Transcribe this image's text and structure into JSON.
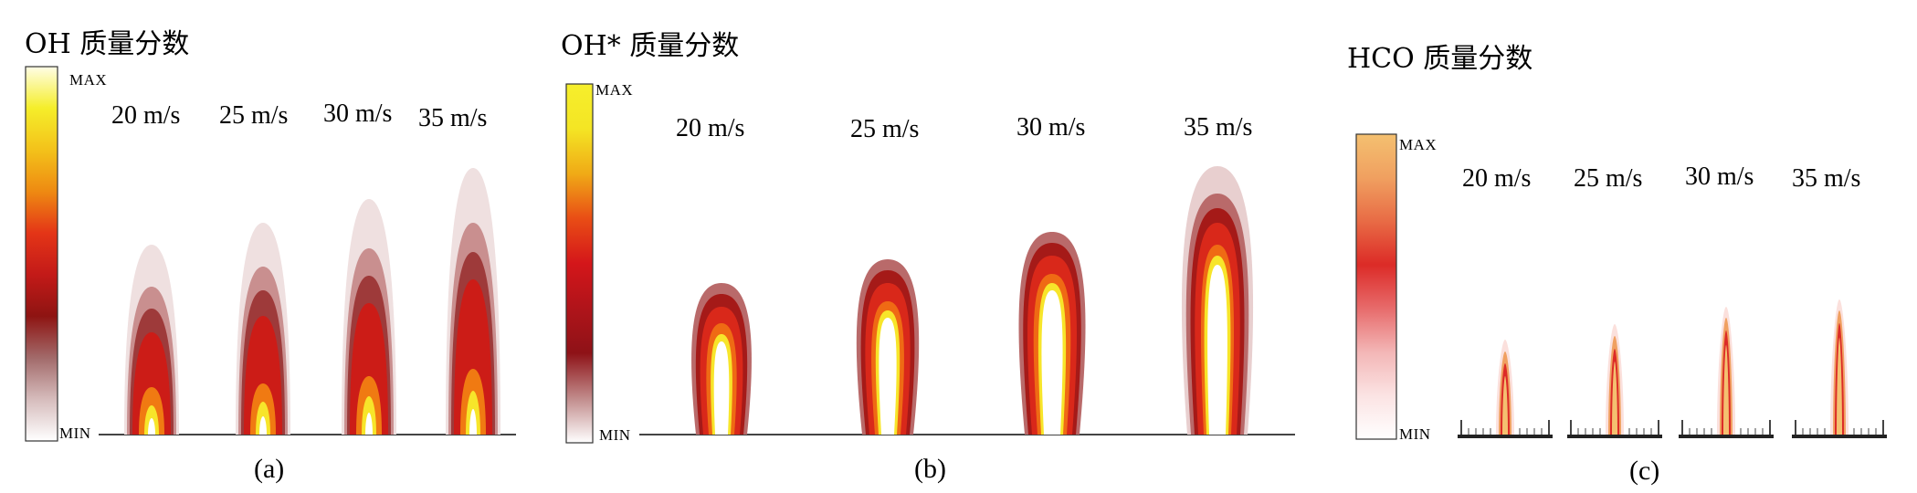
{
  "panels": [
    {
      "id": "a",
      "title": "OH 质量分数",
      "scale_max": "MAX",
      "scale_min": "MIN",
      "speeds": [
        "20 m/s",
        "25 m/s",
        "30 m/s",
        "35 m/s"
      ],
      "caption": "(a)",
      "gradient": [
        "#fffde6",
        "#f5ee2a",
        "#f3c21a",
        "#ee8a12",
        "#e43517",
        "#c31a18",
        "#8e1412",
        "#a26a6a",
        "#d6bcbc",
        "#ffffff"
      ]
    },
    {
      "id": "b",
      "title": "OH* 质量分数",
      "scale_max": "MAX",
      "scale_min": "MIN",
      "speeds": [
        "20 m/s",
        "25 m/s",
        "30 m/s",
        "35 m/s"
      ],
      "caption": "(b)",
      "gradient": [
        "#f6ef2c",
        "#f4e524",
        "#f0aa16",
        "#e94d15",
        "#d4161a",
        "#b0141a",
        "#8e1217",
        "#c08a8a",
        "#ffffff"
      ]
    },
    {
      "id": "c",
      "title": "HCO 质量分数",
      "scale_max": "MAX",
      "scale_min": "MIN",
      "speeds": [
        "20 m/s",
        "25 m/s",
        "30 m/s",
        "35 m/s"
      ],
      "caption": "(c)",
      "gradient": [
        "#f4c070",
        "#f0a060",
        "#e86b45",
        "#dc2b27",
        "#e76b6b",
        "#f3b6b6",
        "#fbe3e3",
        "#ffffff"
      ]
    }
  ]
}
